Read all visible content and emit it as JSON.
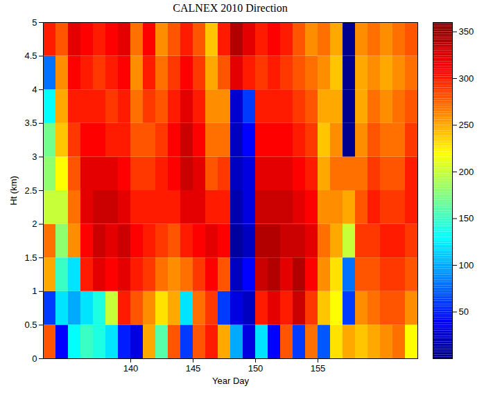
{
  "chart_data": {
    "type": "heatmap",
    "title": "CALNEX 2010 Direction",
    "xlabel": "Year Day",
    "ylabel": "Ht (km)",
    "xlim": [
      133,
      163
    ],
    "xticks": [
      140,
      145,
      150,
      155
    ],
    "ylim": [
      0,
      5
    ],
    "yticks": [
      0,
      0.5,
      1,
      1.5,
      2,
      2.5,
      3,
      3.5,
      4,
      4.5,
      5
    ],
    "x_bins": [
      133,
      134,
      135,
      136,
      137,
      138,
      139,
      140,
      141,
      142,
      143,
      144,
      145,
      146,
      147,
      148,
      149,
      150,
      151,
      152,
      153,
      154,
      155,
      156,
      157,
      158,
      159,
      160,
      161,
      162,
      163
    ],
    "y_bins": [
      0,
      0.5,
      1,
      1.5,
      2,
      2.5,
      3,
      3.5,
      4,
      4.5,
      5
    ],
    "values": [
      [
        280,
        60,
        250,
        270,
        200,
        180,
        170,
        130,
        80,
        300
      ],
      [
        40,
        120,
        150,
        180,
        200,
        220,
        240,
        250,
        260,
        280
      ],
      [
        130,
        100,
        120,
        260,
        270,
        280,
        290,
        300,
        310,
        320
      ],
      [
        150,
        120,
        300,
        310,
        320,
        320,
        310,
        300,
        300,
        310
      ],
      [
        140,
        140,
        320,
        330,
        330,
        320,
        310,
        300,
        290,
        300
      ],
      [
        120,
        200,
        310,
        320,
        330,
        320,
        300,
        290,
        300,
        310
      ],
      [
        50,
        300,
        320,
        330,
        320,
        310,
        300,
        300,
        310,
        320
      ],
      [
        30,
        280,
        300,
        310,
        300,
        290,
        280,
        270,
        260,
        270
      ],
      [
        250,
        260,
        290,
        300,
        300,
        290,
        280,
        290,
        300,
        310
      ],
      [
        160,
        230,
        270,
        290,
        300,
        300,
        290,
        280,
        270,
        260
      ],
      [
        280,
        250,
        260,
        280,
        300,
        310,
        310,
        300,
        290,
        280
      ],
      [
        60,
        120,
        270,
        300,
        320,
        330,
        330,
        320,
        310,
        300
      ],
      [
        280,
        270,
        290,
        310,
        320,
        320,
        310,
        300,
        290,
        280
      ],
      [
        300,
        290,
        310,
        320,
        300,
        280,
        270,
        260,
        250,
        240
      ],
      [
        250,
        60,
        280,
        310,
        300,
        290,
        270,
        260,
        280,
        300
      ],
      [
        100,
        30,
        20,
        10,
        15,
        20,
        20,
        25,
        320,
        340
      ],
      [
        30,
        20,
        40,
        20,
        30,
        30,
        40,
        60,
        300,
        320
      ],
      [
        120,
        300,
        330,
        340,
        330,
        320,
        310,
        300,
        290,
        300
      ],
      [
        40,
        320,
        340,
        340,
        330,
        320,
        310,
        300,
        300,
        310
      ],
      [
        280,
        300,
        320,
        330,
        330,
        320,
        310,
        300,
        290,
        300
      ],
      [
        60,
        330,
        340,
        330,
        320,
        310,
        300,
        290,
        280,
        280
      ],
      [
        270,
        290,
        310,
        320,
        310,
        300,
        290,
        280,
        270,
        260
      ],
      [
        70,
        240,
        260,
        270,
        260,
        250,
        240,
        250,
        260,
        270
      ],
      [
        230,
        220,
        230,
        250,
        260,
        270,
        260,
        250,
        240,
        250
      ],
      [
        250,
        60,
        80,
        200,
        250,
        270,
        5,
        5,
        5,
        5
      ],
      [
        240,
        260,
        280,
        290,
        280,
        270,
        260,
        250,
        250,
        260
      ],
      [
        250,
        270,
        280,
        290,
        300,
        290,
        280,
        270,
        260,
        270
      ],
      [
        260,
        280,
        290,
        300,
        290,
        280,
        270,
        260,
        250,
        260
      ],
      [
        270,
        280,
        290,
        300,
        290,
        280,
        270,
        270,
        260,
        270
      ],
      [
        220,
        260,
        280,
        290,
        300,
        300,
        290,
        280,
        270,
        280
      ]
    ],
    "clim": [
      0,
      360
    ],
    "cticks": [
      50,
      100,
      150,
      200,
      250,
      300,
      350
    ]
  }
}
